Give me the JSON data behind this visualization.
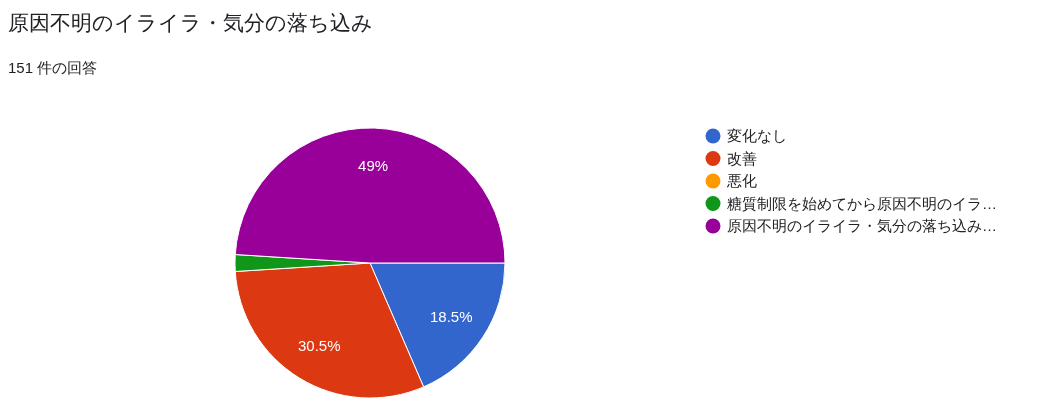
{
  "chart_data": {
    "type": "pie",
    "title": "原因不明のイライラ・気分の落ち込み",
    "subtitle": "151 件の回答",
    "categories": [
      "変化なし",
      "改善",
      "悪化",
      "糖質制限を始めてから原因不明のイラ…",
      "原因不明のイライラ・気分の落ち込み…"
    ],
    "values": [
      18.5,
      30.5,
      0,
      2,
      49
    ],
    "colors": [
      "#3366cc",
      "#dc3912",
      "#ff9900",
      "#109618",
      "#990099"
    ],
    "value_labels": [
      "18.5%",
      "30.5%",
      null,
      null,
      "49%"
    ],
    "legend": "right"
  }
}
